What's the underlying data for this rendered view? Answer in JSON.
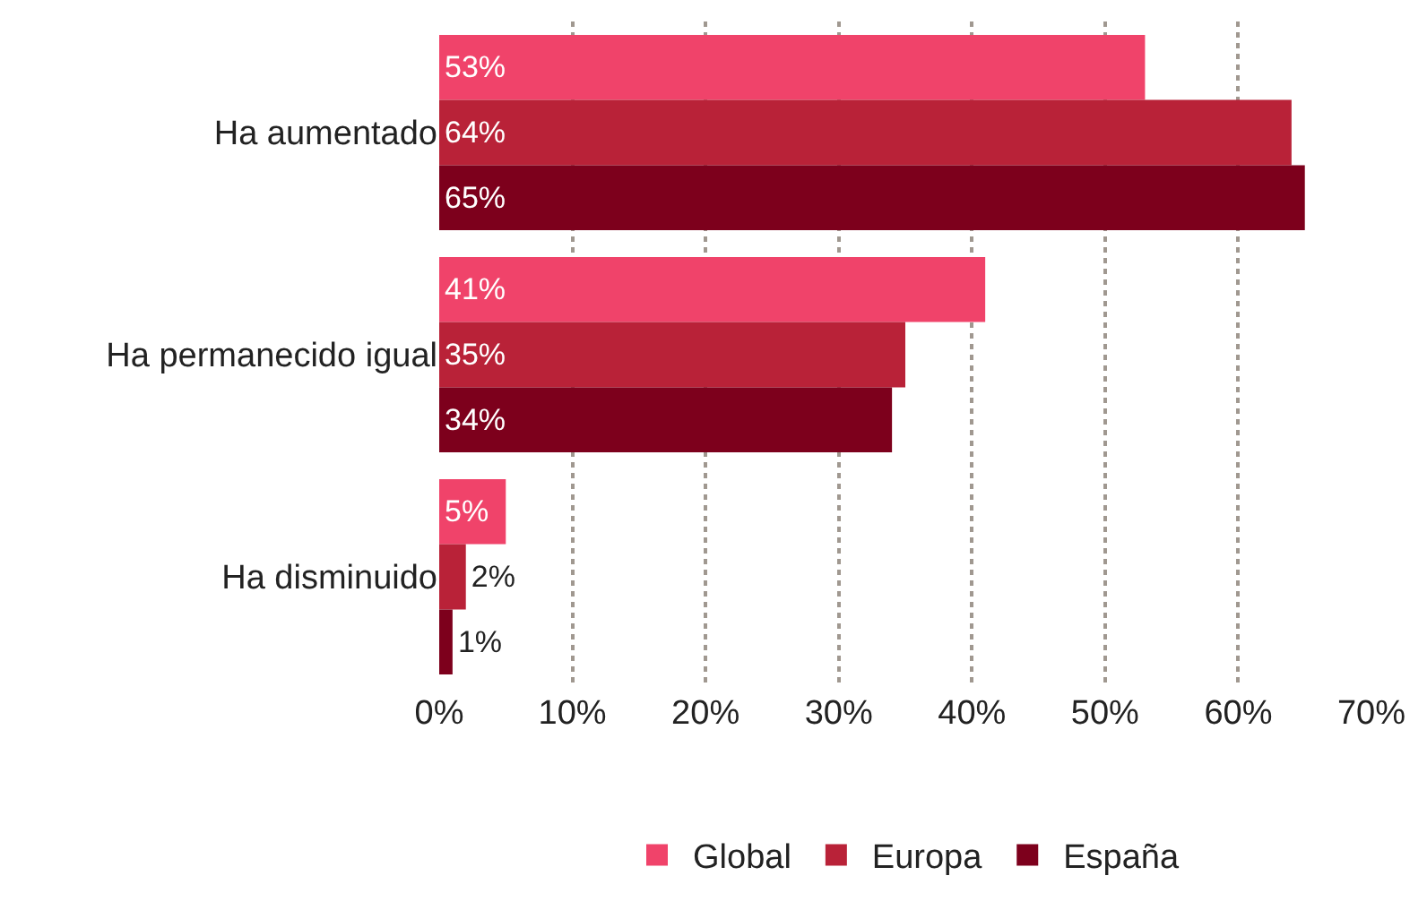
{
  "chart_data": {
    "type": "bar",
    "orientation": "horizontal",
    "categories": [
      "Ha aumentado",
      "Ha permanecido igual",
      "Ha disminuido"
    ],
    "series": [
      {
        "name": "Global",
        "color": "#f0436a",
        "values": [
          53,
          41,
          5
        ],
        "value_labels": [
          "53%",
          "41%",
          "5%"
        ]
      },
      {
        "name": "Europa",
        "color": "#b92238",
        "values": [
          64,
          35,
          2
        ],
        "value_labels": [
          "64%",
          "35%",
          "2%"
        ]
      },
      {
        "name": "España",
        "color": "#7d001c",
        "values": [
          65,
          34,
          1
        ],
        "value_labels": [
          "65%",
          "34%",
          "1%"
        ]
      }
    ],
    "xlim": [
      0,
      70
    ],
    "xticks": [
      {
        "value": 0,
        "label": "0%"
      },
      {
        "value": 10,
        "label": "10%"
      },
      {
        "value": 20,
        "label": "20%"
      },
      {
        "value": 30,
        "label": "30%"
      },
      {
        "value": 40,
        "label": "40%"
      },
      {
        "value": 50,
        "label": "50%"
      },
      {
        "value": 60,
        "label": "60%"
      },
      {
        "value": 70,
        "label": "70%"
      }
    ],
    "grid": "x",
    "legend": "bottom"
  }
}
